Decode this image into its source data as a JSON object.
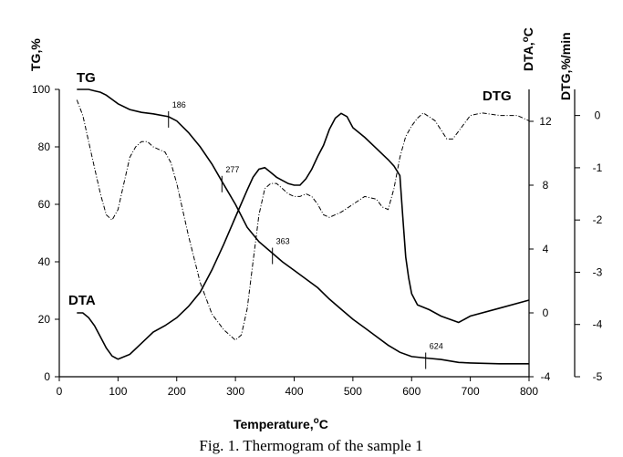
{
  "chart_data": {
    "type": "line",
    "caption": "Fig. 1. Thermogram of the sample 1",
    "xlabel": "Temperature,",
    "xlabel_unit": "C",
    "xlim": [
      0,
      800
    ],
    "x_ticks": [
      "0",
      "100",
      "200",
      "300",
      "400",
      "500",
      "600",
      "700",
      "800"
    ],
    "axes": {
      "tg": {
        "label": "TG,%",
        "ylim": [
          0,
          100
        ],
        "ticks": [
          "0",
          "20",
          "40",
          "60",
          "80",
          "100"
        ]
      },
      "dta": {
        "label_main": "DTA,",
        "label_unit": "C",
        "ylim": [
          -4,
          14
        ],
        "ticks": [
          "-4",
          "0",
          "4",
          "8",
          "12"
        ]
      },
      "dtg": {
        "label": "DTG,%/min",
        "ylim": [
          -5,
          0.5
        ],
        "ticks": [
          "-5",
          "-4",
          "-3",
          "-2",
          "-1",
          "0"
        ]
      }
    },
    "series": [
      {
        "name": "TG",
        "axis": "tg",
        "style": "solid",
        "x": [
          30,
          40,
          50,
          60,
          70,
          80,
          90,
          100,
          120,
          140,
          160,
          186,
          200,
          220,
          240,
          260,
          277,
          300,
          320,
          340,
          363,
          380,
          400,
          420,
          440,
          460,
          480,
          500,
          520,
          540,
          560,
          580,
          600,
          624,
          650,
          680,
          700,
          750,
          800
        ],
        "y": [
          100,
          100,
          100,
          99.5,
          99,
          98,
          96.5,
          95,
          93,
          92,
          91.5,
          90.5,
          89,
          85,
          80,
          74,
          68,
          60,
          52,
          47,
          43,
          40,
          37,
          34,
          31,
          27,
          23.5,
          20,
          17,
          14,
          11,
          8.5,
          7,
          6.5,
          6,
          5,
          4.8,
          4.5,
          4.5
        ]
      },
      {
        "name": "DTA",
        "axis": "dta",
        "style": "solid",
        "x": [
          30,
          40,
          50,
          60,
          70,
          80,
          90,
          100,
          120,
          140,
          160,
          180,
          200,
          220,
          240,
          260,
          280,
          300,
          320,
          330,
          340,
          350,
          360,
          370,
          380,
          390,
          400,
          410,
          420,
          430,
          440,
          450,
          460,
          470,
          480,
          490,
          500,
          520,
          540,
          560,
          570,
          580,
          585,
          590,
          595,
          600,
          610,
          630,
          650,
          680,
          700,
          750,
          800
        ],
        "y": [
          0,
          0,
          -0.3,
          -0.8,
          -1.5,
          -2.2,
          -2.7,
          -2.9,
          -2.6,
          -1.9,
          -1.2,
          -0.8,
          -0.3,
          0.4,
          1.3,
          2.7,
          4.3,
          6,
          7.7,
          8.5,
          9,
          9.1,
          8.8,
          8.5,
          8.3,
          8.1,
          8,
          8,
          8.4,
          9,
          9.8,
          10.5,
          11.5,
          12.2,
          12.5,
          12.3,
          11.6,
          11,
          10.3,
          9.6,
          9.2,
          8.6,
          6,
          3.5,
          2.2,
          1.2,
          0.5,
          0.2,
          -0.2,
          -0.6,
          -0.2,
          0.3,
          0.8
        ]
      },
      {
        "name": "DTG",
        "axis": "dtg",
        "style": "dashdot",
        "x": [
          30,
          40,
          50,
          60,
          70,
          80,
          90,
          100,
          110,
          120,
          130,
          140,
          150,
          160,
          170,
          180,
          190,
          200,
          220,
          240,
          260,
          280,
          300,
          310,
          320,
          330,
          340,
          350,
          360,
          370,
          380,
          390,
          400,
          410,
          420,
          430,
          440,
          450,
          460,
          480,
          500,
          520,
          540,
          550,
          560,
          570,
          580,
          590,
          600,
          610,
          620,
          640,
          660,
          670,
          680,
          700,
          720,
          750,
          780,
          800
        ],
        "y": [
          0.3,
          0,
          -0.5,
          -1,
          -1.5,
          -1.9,
          -2.0,
          -1.8,
          -1.3,
          -0.8,
          -0.6,
          -0.5,
          -0.5,
          -0.6,
          -0.65,
          -0.7,
          -0.9,
          -1.3,
          -2.3,
          -3.2,
          -3.8,
          -4.1,
          -4.3,
          -4.2,
          -3.7,
          -2.8,
          -1.9,
          -1.4,
          -1.3,
          -1.3,
          -1.4,
          -1.5,
          -1.55,
          -1.55,
          -1.5,
          -1.55,
          -1.7,
          -1.9,
          -1.95,
          -1.85,
          -1.7,
          -1.55,
          -1.6,
          -1.75,
          -1.8,
          -1.4,
          -0.8,
          -0.4,
          -0.2,
          -0.05,
          0.05,
          -0.1,
          -0.45,
          -0.45,
          -0.3,
          0,
          0.05,
          0,
          0,
          -0.1
        ]
      }
    ],
    "annotations": [
      {
        "text": "186",
        "x": 186,
        "y_tg": 90.5
      },
      {
        "text": "277",
        "x": 277,
        "y_tg": 68
      },
      {
        "text": "363",
        "x": 363,
        "y_tg": 43
      },
      {
        "text": "624",
        "x": 624,
        "y_tg": 6.5
      }
    ]
  }
}
